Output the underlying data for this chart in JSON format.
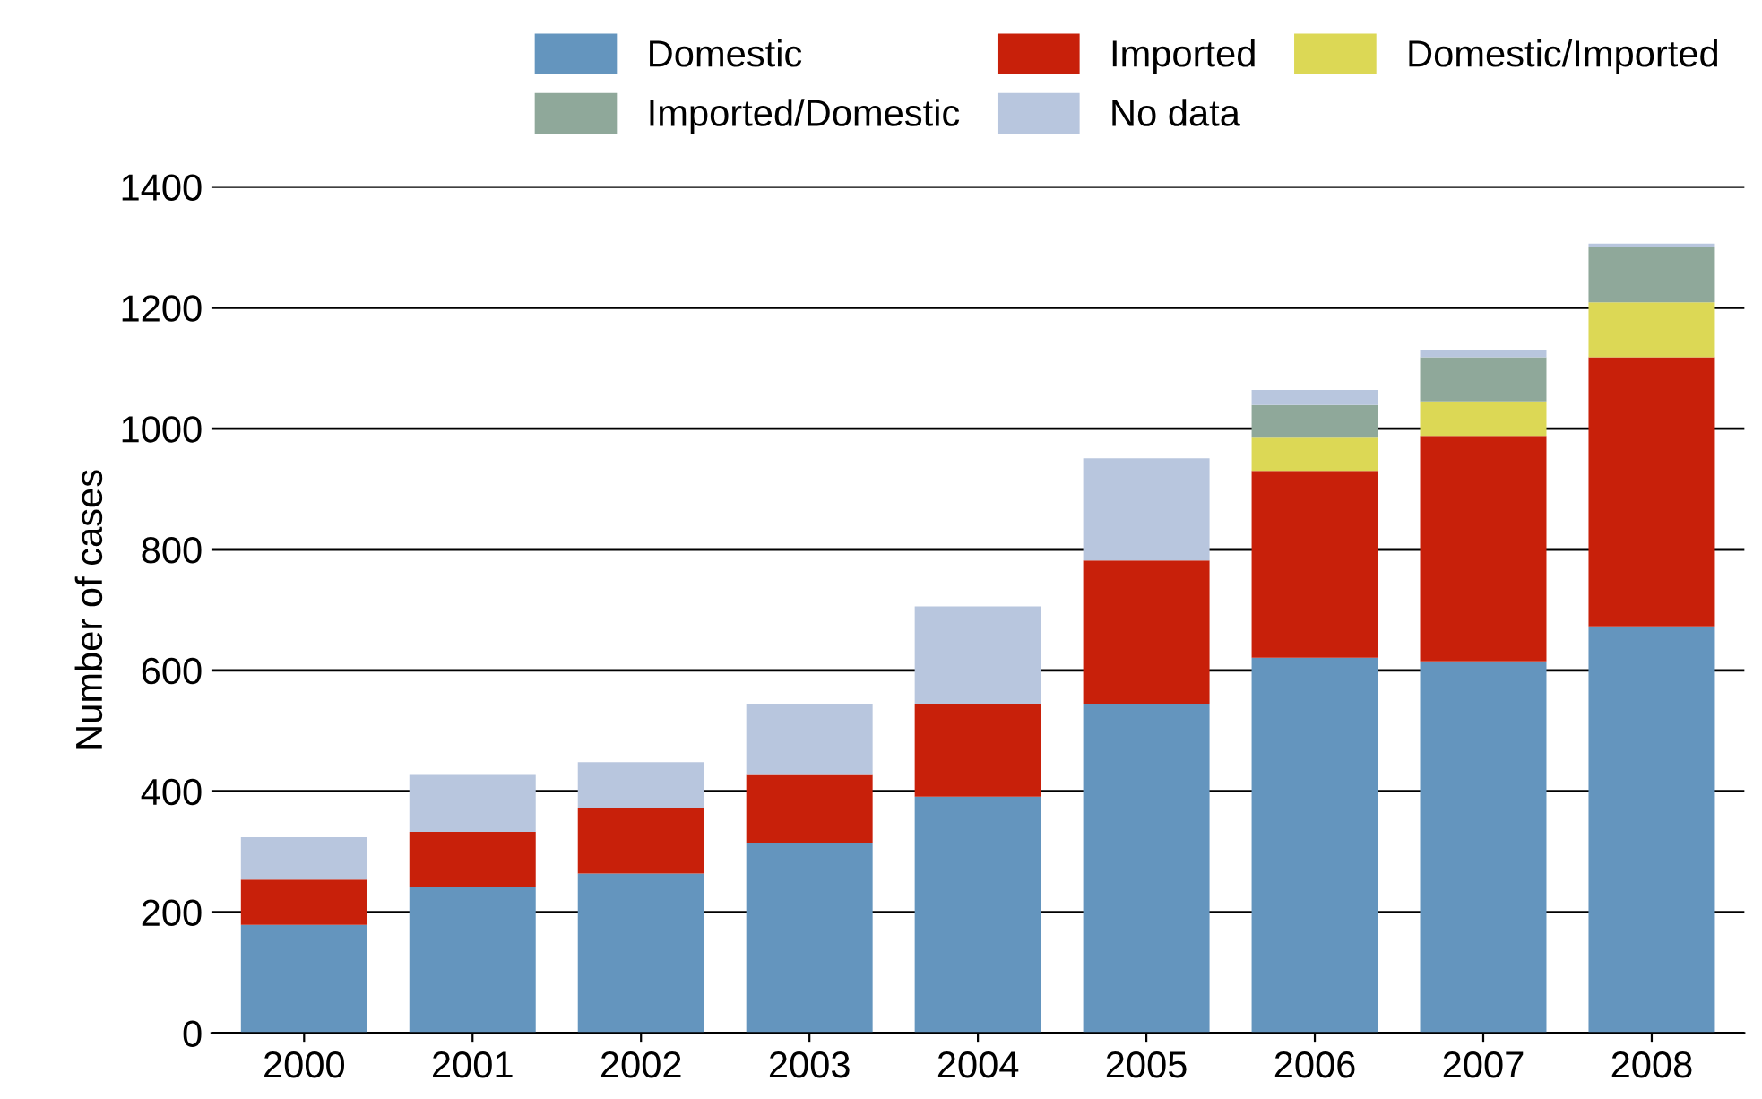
{
  "chart_data": {
    "type": "bar",
    "stacked": true,
    "ylabel": "Number of cases",
    "categories": [
      "2000",
      "2001",
      "2002",
      "2003",
      "2004",
      "2005",
      "2006",
      "2007",
      "2008"
    ],
    "series": [
      {
        "name": "Domestic",
        "color": "#6495be",
        "values": [
          179,
          242,
          264,
          315,
          391,
          545,
          621,
          615,
          673
        ]
      },
      {
        "name": "Imported",
        "color": "#c8200a",
        "values": [
          75,
          91,
          109,
          112,
          154,
          237,
          309,
          373,
          445
        ]
      },
      {
        "name": "Domestic/Imported",
        "color": "#dcd855",
        "values": [
          0,
          0,
          0,
          0,
          0,
          0,
          55,
          57,
          91
        ]
      },
      {
        "name": "Imported/Domestic",
        "color": "#8fa89a",
        "values": [
          0,
          0,
          0,
          0,
          0,
          0,
          54,
          73,
          91
        ]
      },
      {
        "name": "No data",
        "color": "#b8c6de",
        "values": [
          70,
          94,
          75,
          118,
          161,
          169,
          25,
          12,
          6
        ]
      }
    ],
    "ylim": [
      0,
      1400
    ],
    "yticks": [
      0,
      200,
      400,
      600,
      800,
      1000,
      1200,
      1400
    ],
    "grid": "y",
    "legend": "top right"
  }
}
